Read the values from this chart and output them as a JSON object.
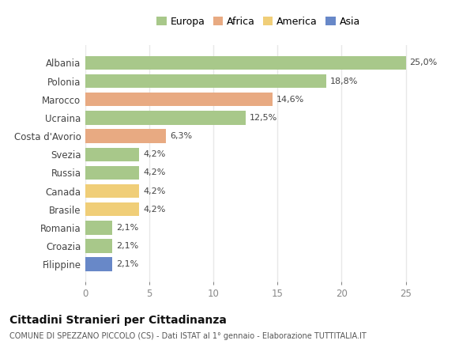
{
  "categories": [
    "Albania",
    "Polonia",
    "Marocco",
    "Ucraina",
    "Costa d'Avorio",
    "Svezia",
    "Russia",
    "Canada",
    "Brasile",
    "Romania",
    "Croazia",
    "Filippine"
  ],
  "values": [
    25.0,
    18.8,
    14.6,
    12.5,
    6.3,
    4.2,
    4.2,
    4.2,
    4.2,
    2.1,
    2.1,
    2.1
  ],
  "labels": [
    "25,0%",
    "18,8%",
    "14,6%",
    "12,5%",
    "6,3%",
    "4,2%",
    "4,2%",
    "4,2%",
    "4,2%",
    "2,1%",
    "2,1%",
    "2,1%"
  ],
  "colors": [
    "#a8c88a",
    "#a8c88a",
    "#e8aa82",
    "#a8c88a",
    "#e8aa82",
    "#a8c88a",
    "#a8c88a",
    "#f0ce78",
    "#f0ce78",
    "#a8c88a",
    "#a8c88a",
    "#6888c8"
  ],
  "legend": [
    {
      "label": "Europa",
      "color": "#a8c88a"
    },
    {
      "label": "Africa",
      "color": "#e8aa82"
    },
    {
      "label": "America",
      "color": "#f0ce78"
    },
    {
      "label": "Asia",
      "color": "#6888c8"
    }
  ],
  "xlim": [
    0,
    27
  ],
  "xticks": [
    0,
    5,
    10,
    15,
    20,
    25
  ],
  "title": "Cittadini Stranieri per Cittadinanza",
  "subtitle": "COMUNE DI SPEZZANO PICCOLO (CS) - Dati ISTAT al 1° gennaio - Elaborazione TUTTITALIA.IT",
  "bg_color": "#ffffff",
  "grid_color": "#e8e8e8",
  "bar_height": 0.75
}
